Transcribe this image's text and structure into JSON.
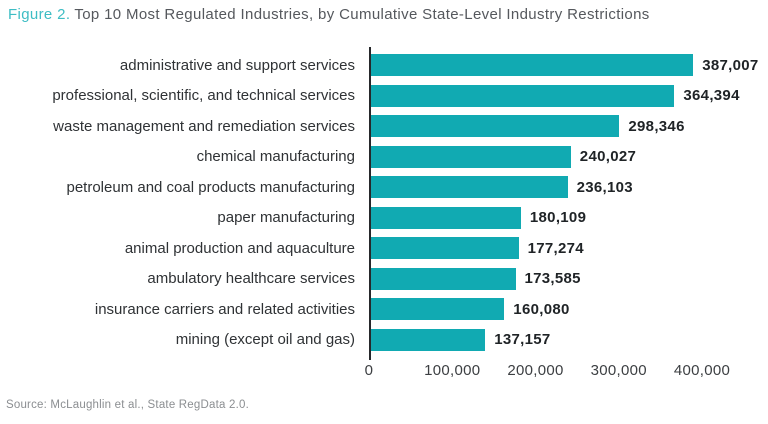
{
  "figure": {
    "number_label": "Figure 2.",
    "title": "Top 10 Most Regulated Industries, by Cumulative State-Level Industry Restrictions"
  },
  "chart_data": {
    "type": "bar",
    "orientation": "horizontal",
    "title": "Top 10 Most Regulated Industries, by Cumulative State-Level Industry Restrictions",
    "categories": [
      "administrative and support services",
      "professional, scientific, and technical services",
      "waste management and remediation services",
      "chemical manufacturing",
      "petroleum and coal products manufacturing",
      "paper manufacturing",
      "animal production and aquaculture",
      "ambulatory healthcare services",
      "insurance carriers and related activities",
      "mining (except oil and gas)"
    ],
    "values": [
      387007,
      364394,
      298346,
      240027,
      236103,
      180109,
      177274,
      173585,
      160080,
      137157
    ],
    "value_labels": [
      "387,007",
      "364,394",
      "298,346",
      "240,027",
      "236,103",
      "180,109",
      "177,274",
      "173,585",
      "160,080",
      "137,157"
    ],
    "xlim": [
      0,
      400000
    ],
    "x_ticks": [
      0,
      100000,
      200000,
      300000,
      400000
    ],
    "x_tick_labels": [
      "0",
      "100,000",
      "200,000",
      "300,000",
      "400,000"
    ],
    "grid": false,
    "legend": false,
    "xlabel": "",
    "ylabel": ""
  },
  "source": "Source: McLaughlin et al., State RegData 2.0.",
  "colors": {
    "figure_number": "#3ebdc4",
    "title_text": "#55585d",
    "bar": "#11aab2",
    "axis_line": "#26282b",
    "category_text": "#2f3235",
    "value_text": "#1f2326",
    "tick_text": "#3c3f42",
    "source_text": "#8b8e91"
  }
}
